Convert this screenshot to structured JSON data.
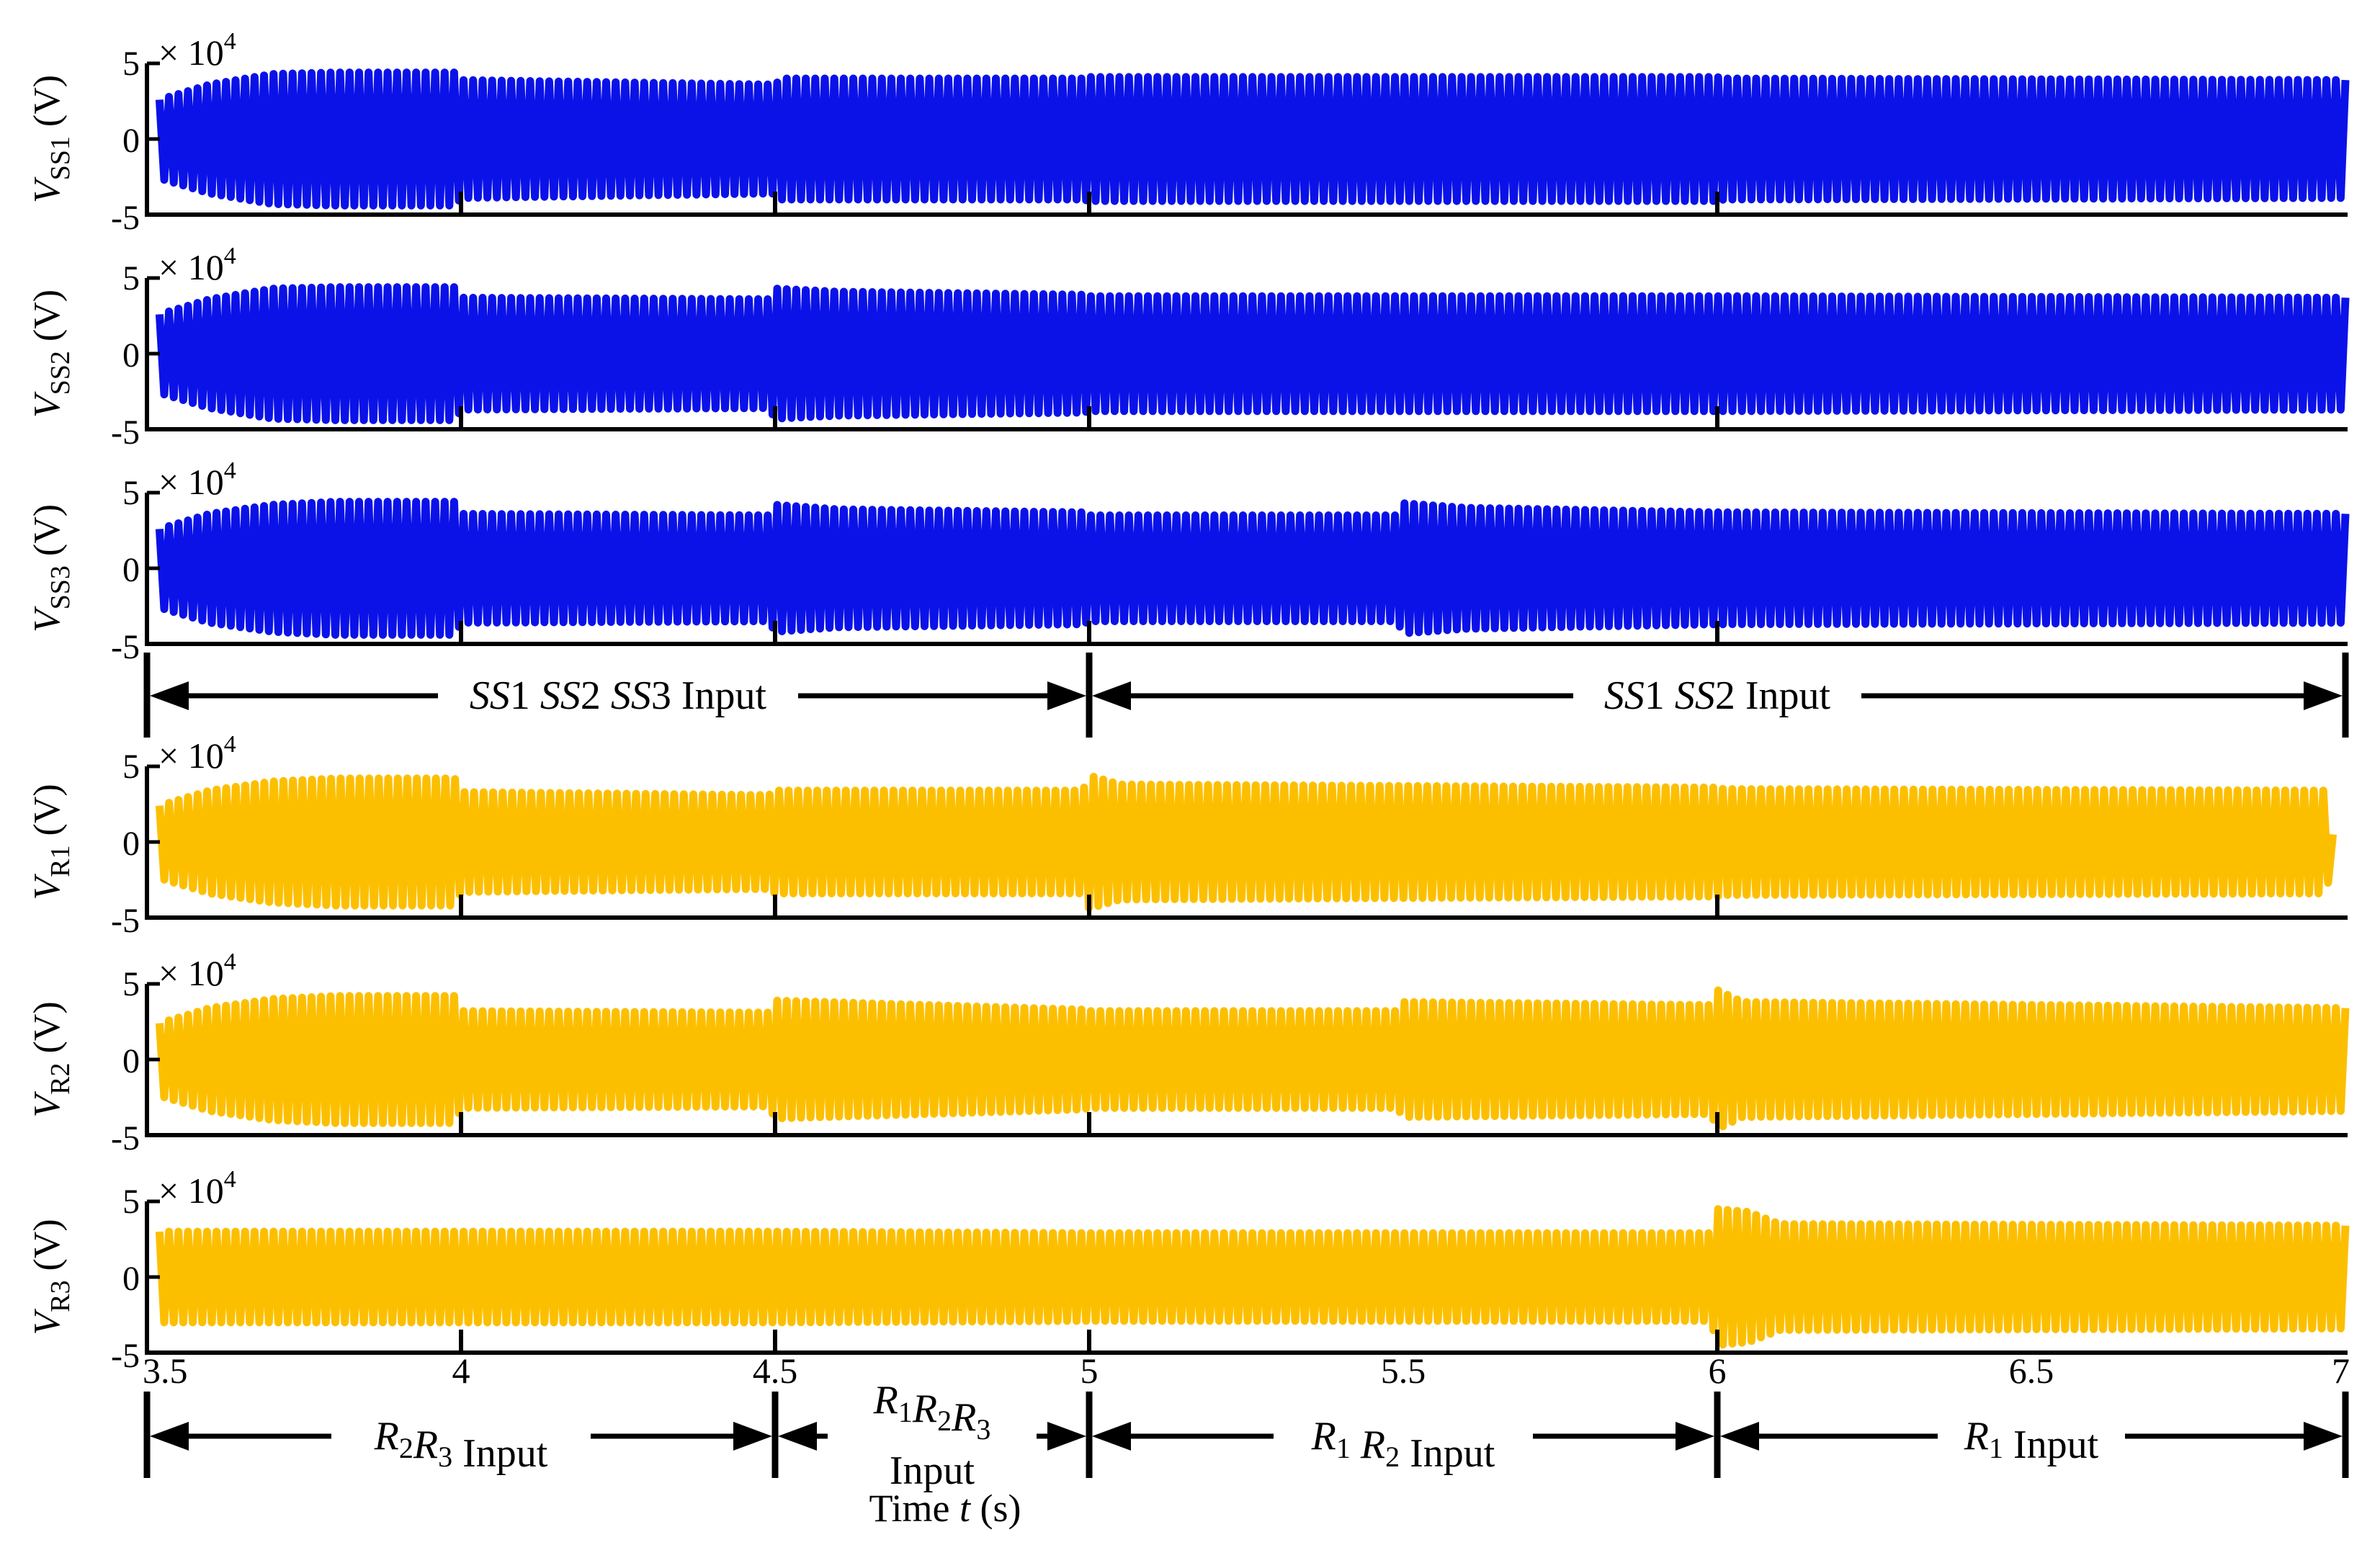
{
  "chart_data": [
    {
      "type": "line",
      "name": "VSS1",
      "ylabel": {
        "base": "V",
        "sub": "SS1",
        "unit": "(V)"
      },
      "multiplier": {
        "base": "× 10",
        "exp": "4"
      },
      "yticks": [
        "5",
        "0",
        "-5"
      ],
      "ylim": [
        -5,
        5
      ],
      "xlim": [
        3.5,
        7
      ],
      "color": "#0b12e8",
      "series": [
        {
          "name": "VSS1",
          "envelope": [
            {
              "t": 3.52,
              "a": 2.6
            },
            {
              "t": 3.6,
              "a": 3.6
            },
            {
              "t": 3.7,
              "a": 4.3
            },
            {
              "t": 3.8,
              "a": 4.4
            },
            {
              "t": 3.9,
              "a": 4.4
            },
            {
              "t": 3.99,
              "a": 4.4
            },
            {
              "t": 4.0,
              "a": 3.9
            },
            {
              "t": 4.5,
              "a": 3.6
            },
            {
              "t": 4.51,
              "a": 4.0
            },
            {
              "t": 4.99,
              "a": 4.0
            },
            {
              "t": 5.0,
              "a": 4.1
            },
            {
              "t": 6.0,
              "a": 4.1
            },
            {
              "t": 6.01,
              "a": 4.0
            },
            {
              "t": 7.0,
              "a": 3.9
            }
          ]
        }
      ]
    },
    {
      "type": "line",
      "name": "VSS2",
      "ylabel": {
        "base": "V",
        "sub": "SS2",
        "unit": "(V)"
      },
      "multiplier": {
        "base": "× 10",
        "exp": "4"
      },
      "yticks": [
        "5",
        "0",
        "-5"
      ],
      "ylim": [
        -5,
        5
      ],
      "xlim": [
        3.5,
        7
      ],
      "color": "#0b12e8",
      "series": [
        {
          "name": "VSS2",
          "envelope": [
            {
              "t": 3.52,
              "a": 2.6
            },
            {
              "t": 3.6,
              "a": 3.6
            },
            {
              "t": 3.7,
              "a": 4.3
            },
            {
              "t": 3.8,
              "a": 4.4
            },
            {
              "t": 3.99,
              "a": 4.4
            },
            {
              "t": 4.0,
              "a": 3.7
            },
            {
              "t": 4.49,
              "a": 3.6
            },
            {
              "t": 4.5,
              "a": 4.3
            },
            {
              "t": 4.6,
              "a": 4.1
            },
            {
              "t": 4.99,
              "a": 3.9
            },
            {
              "t": 5.0,
              "a": 3.8
            },
            {
              "t": 6.0,
              "a": 3.8
            },
            {
              "t": 7.0,
              "a": 3.7
            }
          ]
        }
      ]
    },
    {
      "type": "line",
      "name": "VSS3",
      "ylabel": {
        "base": "V",
        "sub": "SS3",
        "unit": "(V)"
      },
      "multiplier": {
        "base": "× 10",
        "exp": "4"
      },
      "yticks": [
        "5",
        "0",
        "-5"
      ],
      "ylim": [
        -5,
        5
      ],
      "xlim": [
        3.5,
        7
      ],
      "color": "#0b12e8",
      "series": [
        {
          "name": "VSS3",
          "envelope": [
            {
              "t": 3.52,
              "a": 2.6
            },
            {
              "t": 3.6,
              "a": 3.6
            },
            {
              "t": 3.7,
              "a": 4.2
            },
            {
              "t": 3.8,
              "a": 4.4
            },
            {
              "t": 3.99,
              "a": 4.4
            },
            {
              "t": 4.0,
              "a": 3.6
            },
            {
              "t": 4.49,
              "a": 3.5
            },
            {
              "t": 4.5,
              "a": 4.2
            },
            {
              "t": 4.6,
              "a": 3.9
            },
            {
              "t": 4.99,
              "a": 3.7
            },
            {
              "t": 5.0,
              "a": 3.5
            },
            {
              "t": 5.49,
              "a": 3.5
            },
            {
              "t": 5.5,
              "a": 4.3
            },
            {
              "t": 5.6,
              "a": 4.0
            },
            {
              "t": 6.0,
              "a": 3.7
            },
            {
              "t": 7.0,
              "a": 3.6
            }
          ]
        }
      ]
    },
    {
      "type": "line",
      "name": "VR1",
      "ylabel": {
        "base": "V",
        "sub": "R1",
        "unit": "(V)"
      },
      "multiplier": {
        "base": "× 10",
        "exp": "4"
      },
      "yticks": [
        "5",
        "0",
        "-5"
      ],
      "ylim": [
        -5,
        5
      ],
      "xlim": [
        3.5,
        7
      ],
      "color": "#fcbf00",
      "series": [
        {
          "name": "VR1",
          "envelope": [
            {
              "t": 3.52,
              "a": 2.4
            },
            {
              "t": 3.6,
              "a": 3.4
            },
            {
              "t": 3.7,
              "a": 4.0
            },
            {
              "t": 3.8,
              "a": 4.2
            },
            {
              "t": 3.99,
              "a": 4.2
            },
            {
              "t": 4.0,
              "a": 3.3
            },
            {
              "t": 4.49,
              "a": 3.1
            },
            {
              "t": 4.5,
              "a": 3.4
            },
            {
              "t": 4.99,
              "a": 3.4
            },
            {
              "t": 5.0,
              "a": 4.4
            },
            {
              "t": 5.05,
              "a": 3.8
            },
            {
              "t": 6.0,
              "a": 3.6
            },
            {
              "t": 6.01,
              "a": 3.5
            },
            {
              "t": 6.97,
              "a": 3.4
            },
            {
              "t": 6.98,
              "a": 0.5
            }
          ]
        }
      ]
    },
    {
      "type": "line",
      "name": "VR2",
      "ylabel": {
        "base": "V",
        "sub": "R2",
        "unit": "(V)"
      },
      "multiplier": {
        "base": "× 10",
        "exp": "4"
      },
      "yticks": [
        "5",
        "0",
        "-5"
      ],
      "ylim": [
        -5,
        5
      ],
      "xlim": [
        3.5,
        7
      ],
      "color": "#fcbf00",
      "series": [
        {
          "name": "VR2",
          "envelope": [
            {
              "t": 3.52,
              "a": 2.4
            },
            {
              "t": 3.6,
              "a": 3.4
            },
            {
              "t": 3.7,
              "a": 4.0
            },
            {
              "t": 3.8,
              "a": 4.2
            },
            {
              "t": 3.99,
              "a": 4.2
            },
            {
              "t": 4.0,
              "a": 3.2
            },
            {
              "t": 4.49,
              "a": 3.1
            },
            {
              "t": 4.5,
              "a": 3.9
            },
            {
              "t": 4.99,
              "a": 3.3
            },
            {
              "t": 5.0,
              "a": 3.2
            },
            {
              "t": 5.49,
              "a": 3.2
            },
            {
              "t": 5.5,
              "a": 3.8
            },
            {
              "t": 5.99,
              "a": 3.6
            },
            {
              "t": 6.0,
              "a": 4.6
            },
            {
              "t": 6.04,
              "a": 3.8
            },
            {
              "t": 7.0,
              "a": 3.4
            }
          ]
        }
      ]
    },
    {
      "type": "line",
      "name": "VR3",
      "ylabel": {
        "base": "V",
        "sub": "R3",
        "unit": "(V)"
      },
      "multiplier": {
        "base": "× 10",
        "exp": "4"
      },
      "yticks": [
        "5",
        "0",
        "-5"
      ],
      "ylim": [
        -5,
        5
      ],
      "xlim": [
        3.5,
        7
      ],
      "color": "#fcbf00",
      "xticks": [
        "3.5",
        "4",
        "4.5",
        "5",
        "5.5",
        "6",
        "6.5",
        "7"
      ],
      "xlabel": {
        "text": "Time ",
        "var": "t",
        "unit": " (s)"
      },
      "series": [
        {
          "name": "VR3",
          "envelope": [
            {
              "t": 3.52,
              "a": 3.0
            },
            {
              "t": 4.0,
              "a": 3.0
            },
            {
              "t": 4.5,
              "a": 3.0
            },
            {
              "t": 5.0,
              "a": 2.9
            },
            {
              "t": 5.99,
              "a": 2.9
            },
            {
              "t": 6.0,
              "a": 4.5
            },
            {
              "t": 6.05,
              "a": 4.3
            },
            {
              "t": 6.1,
              "a": 3.5
            },
            {
              "t": 7.0,
              "a": 3.4
            }
          ]
        }
      ]
    }
  ],
  "annotations": {
    "ss_bar": {
      "left": {
        "parts": [
          {
            "t": "SS",
            "i": true
          },
          {
            "t": "1 ",
            "i": false
          },
          {
            "t": "SS",
            "i": true
          },
          {
            "t": "2 ",
            "i": false
          },
          {
            "t": "SS",
            "i": true
          },
          {
            "t": "3 Input",
            "i": false
          }
        ]
      },
      "right": {
        "parts": [
          {
            "t": "SS",
            "i": true
          },
          {
            "t": "1 ",
            "i": false
          },
          {
            "t": "SS",
            "i": true
          },
          {
            "t": "2  Input",
            "i": false
          }
        ]
      }
    },
    "r_bar": {
      "seg1": {
        "parts": [
          {
            "t": "R",
            "i": true
          },
          {
            "t": "2",
            "i": false,
            "sub": true
          },
          {
            "t": "R",
            "i": true
          },
          {
            "t": "3",
            "i": false,
            "sub": true
          },
          {
            "t": "  Input",
            "i": false
          }
        ]
      },
      "seg2_line1": {
        "parts": [
          {
            "t": "R",
            "i": true
          },
          {
            "t": "1",
            "i": false,
            "sub": true
          },
          {
            "t": "R",
            "i": true
          },
          {
            "t": "2",
            "i": false,
            "sub": true
          },
          {
            "t": "R",
            "i": true
          },
          {
            "t": "3",
            "i": false,
            "sub": true
          }
        ]
      },
      "seg2_line2": "Input",
      "seg3": {
        "parts": [
          {
            "t": "R",
            "i": true
          },
          {
            "t": "1",
            "i": false,
            "sub": true
          },
          {
            "t": " ",
            "i": false
          },
          {
            "t": "R",
            "i": true
          },
          {
            "t": "2",
            "i": false,
            "sub": true
          },
          {
            "t": " Input",
            "i": false
          }
        ]
      },
      "seg4": {
        "parts": [
          {
            "t": "R",
            "i": true
          },
          {
            "t": "1",
            "i": false,
            "sub": true
          },
          {
            "t": " Input",
            "i": false
          }
        ]
      }
    }
  }
}
